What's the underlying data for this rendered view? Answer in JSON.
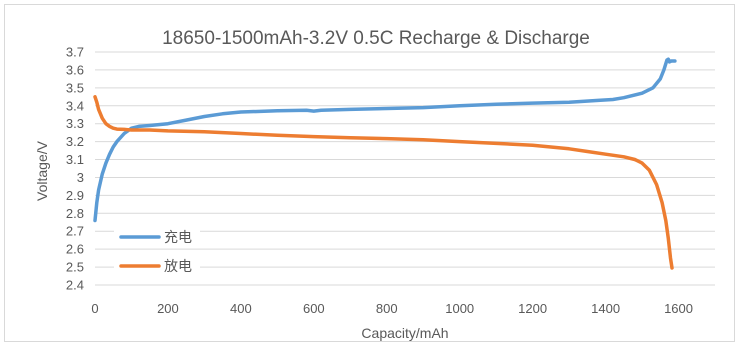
{
  "chart_data": {
    "type": "line",
    "title": "18650-1500mAh-3.2V 0.5C Recharge & Discharge",
    "xlabel": "Capacity/mAh",
    "ylabel": "Voltage/V",
    "xlim": [
      0,
      1700
    ],
    "ylim": [
      2.4,
      3.7
    ],
    "x_ticks": [
      "0",
      "200",
      "400",
      "600",
      "800",
      "1000",
      "1200",
      "1400",
      "1600"
    ],
    "y_ticks": [
      "2.4",
      "2.5",
      "2.6",
      "2.7",
      "2.8",
      "2.9",
      "3",
      "3.1",
      "3.2",
      "3.3",
      "3.4",
      "3.5",
      "3.6",
      "3.7"
    ],
    "grid": "horizontal",
    "legend_position": "bottom-left",
    "series": [
      {
        "name": "充电",
        "color": "#5b9bd5",
        "x": [
          0,
          5,
          10,
          20,
          30,
          40,
          50,
          60,
          80,
          100,
          120,
          150,
          200,
          250,
          300,
          350,
          400,
          500,
          580,
          600,
          620,
          700,
          800,
          900,
          1000,
          1100,
          1200,
          1300,
          1380,
          1420,
          1450,
          1500,
          1530,
          1550,
          1560,
          1568,
          1572,
          1575,
          1580,
          1590
        ],
        "values": [
          2.76,
          2.86,
          2.93,
          3.02,
          3.08,
          3.13,
          3.17,
          3.2,
          3.245,
          3.275,
          3.285,
          3.29,
          3.3,
          3.32,
          3.34,
          3.355,
          3.365,
          3.372,
          3.375,
          3.37,
          3.375,
          3.38,
          3.385,
          3.39,
          3.4,
          3.408,
          3.415,
          3.42,
          3.43,
          3.435,
          3.445,
          3.47,
          3.5,
          3.55,
          3.6,
          3.655,
          3.66,
          3.645,
          3.65,
          3.65
        ]
      },
      {
        "name": "放电",
        "color": "#ed7d31",
        "x": [
          0,
          5,
          10,
          20,
          30,
          40,
          50,
          60,
          80,
          100,
          150,
          200,
          300,
          400,
          500,
          600,
          700,
          800,
          900,
          1000,
          1100,
          1200,
          1300,
          1350,
          1400,
          1450,
          1480,
          1500,
          1520,
          1540,
          1555,
          1565,
          1572,
          1578,
          1582
        ],
        "values": [
          3.45,
          3.42,
          3.38,
          3.33,
          3.3,
          3.285,
          3.275,
          3.27,
          3.268,
          3.265,
          3.265,
          3.26,
          3.255,
          3.245,
          3.235,
          3.228,
          3.222,
          3.217,
          3.21,
          3.2,
          3.19,
          3.18,
          3.16,
          3.145,
          3.13,
          3.115,
          3.1,
          3.08,
          3.04,
          2.96,
          2.86,
          2.76,
          2.66,
          2.55,
          2.495
        ]
      }
    ]
  }
}
